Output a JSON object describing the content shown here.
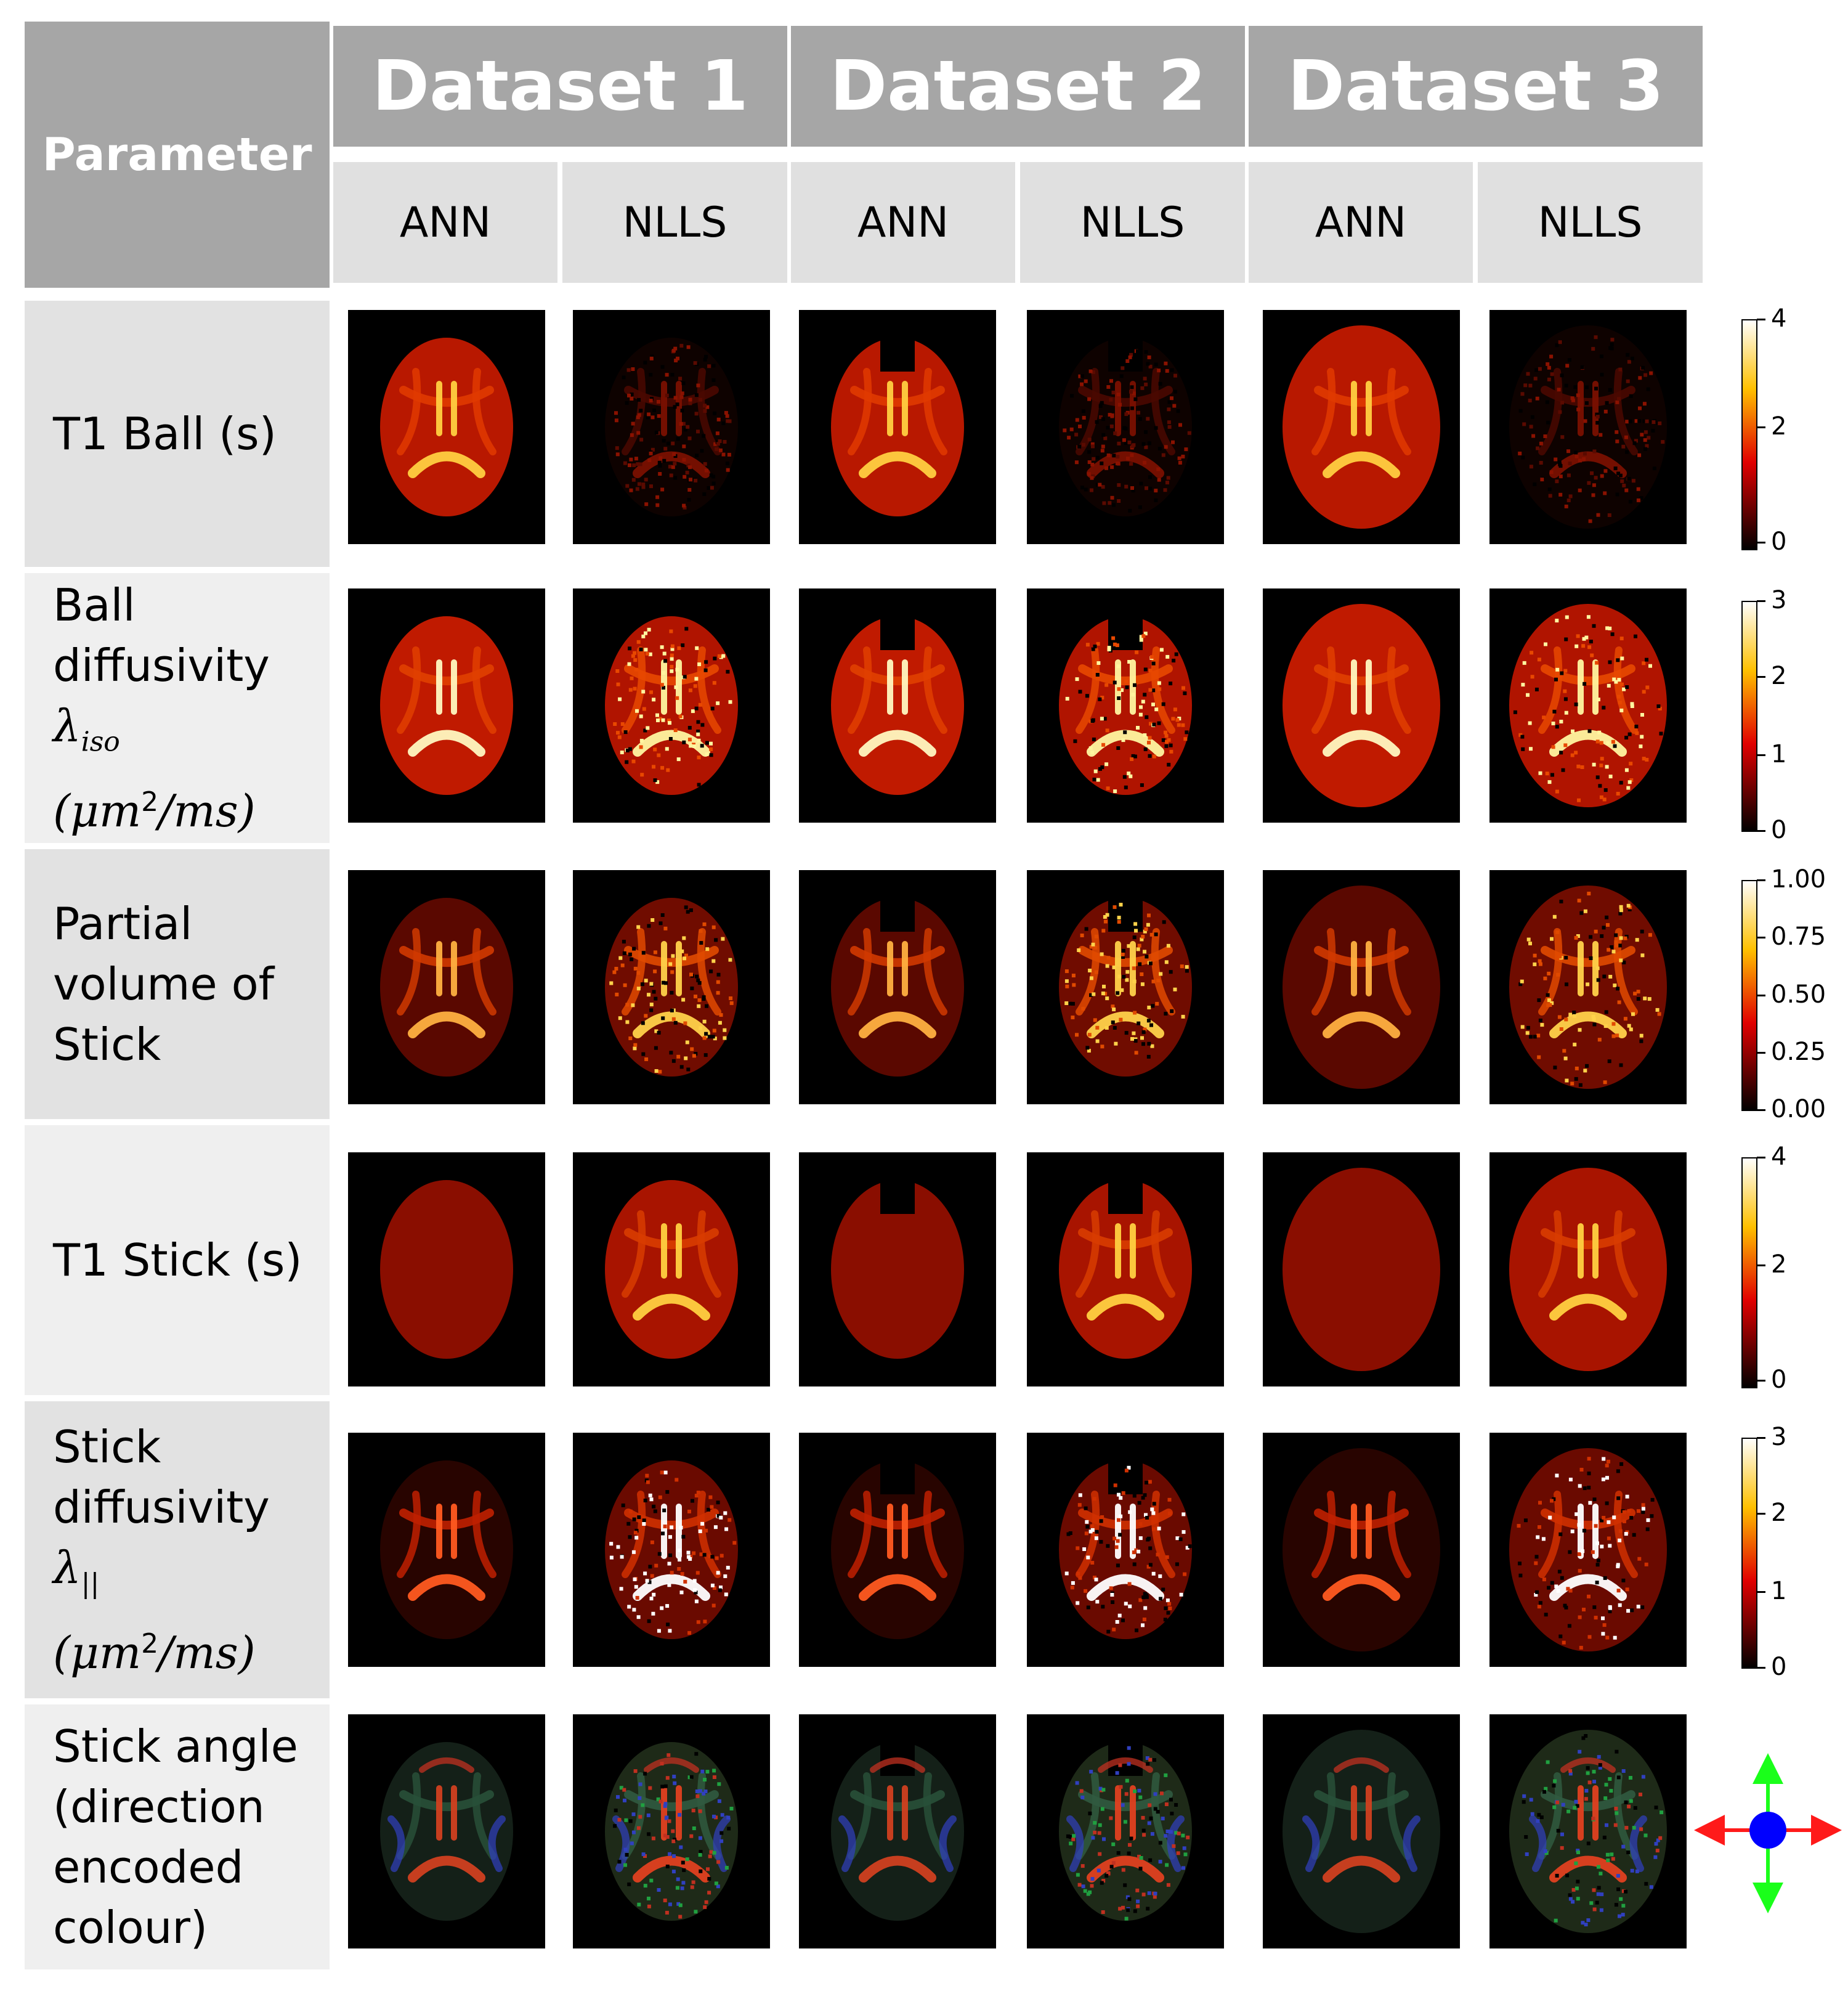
{
  "header": {
    "parameter_label": "Parameter",
    "datasets": [
      "Dataset 1",
      "Dataset 2",
      "Dataset 3"
    ],
    "methods": [
      "ANN",
      "NLLS",
      "ANN",
      "NLLS",
      "ANN",
      "NLLS"
    ]
  },
  "rows": [
    {
      "lines": [
        "T1 Ball (s)"
      ],
      "colorbar_ticks": [
        "4",
        "2",
        "0"
      ]
    },
    {
      "lines": [
        "Ball",
        "diffusivity",
        "λ",
        "iso",
        "(μm",
        "2",
        "/ms)"
      ],
      "colorbar_ticks": [
        "3",
        "2",
        "1",
        "0"
      ]
    },
    {
      "lines": [
        "Partial",
        "volume of",
        "Stick"
      ],
      "colorbar_ticks": [
        "1.00",
        "0.75",
        "0.50",
        "0.25",
        "0.00"
      ]
    },
    {
      "lines": [
        "T1 Stick (s)"
      ],
      "colorbar_ticks": [
        "4",
        "2",
        "0"
      ]
    },
    {
      "lines": [
        "Stick",
        "diffusivity",
        "λ",
        "||",
        "(μm",
        "2",
        "/ms)"
      ],
      "colorbar_ticks": [
        "3",
        "2",
        "1",
        "0"
      ]
    },
    {
      "lines": [
        "Stick angle",
        "(direction",
        "encoded",
        "colour)"
      ]
    }
  ],
  "colors": {
    "header_dark": "#a6a6a6",
    "header_light": "#e0e0e0",
    "row_light": "#efefef",
    "row_mid": "#e2e2e2",
    "arrow_red": "#ff1a1a",
    "arrow_green": "#1aff1a",
    "dot_blue": "#0000ff"
  }
}
